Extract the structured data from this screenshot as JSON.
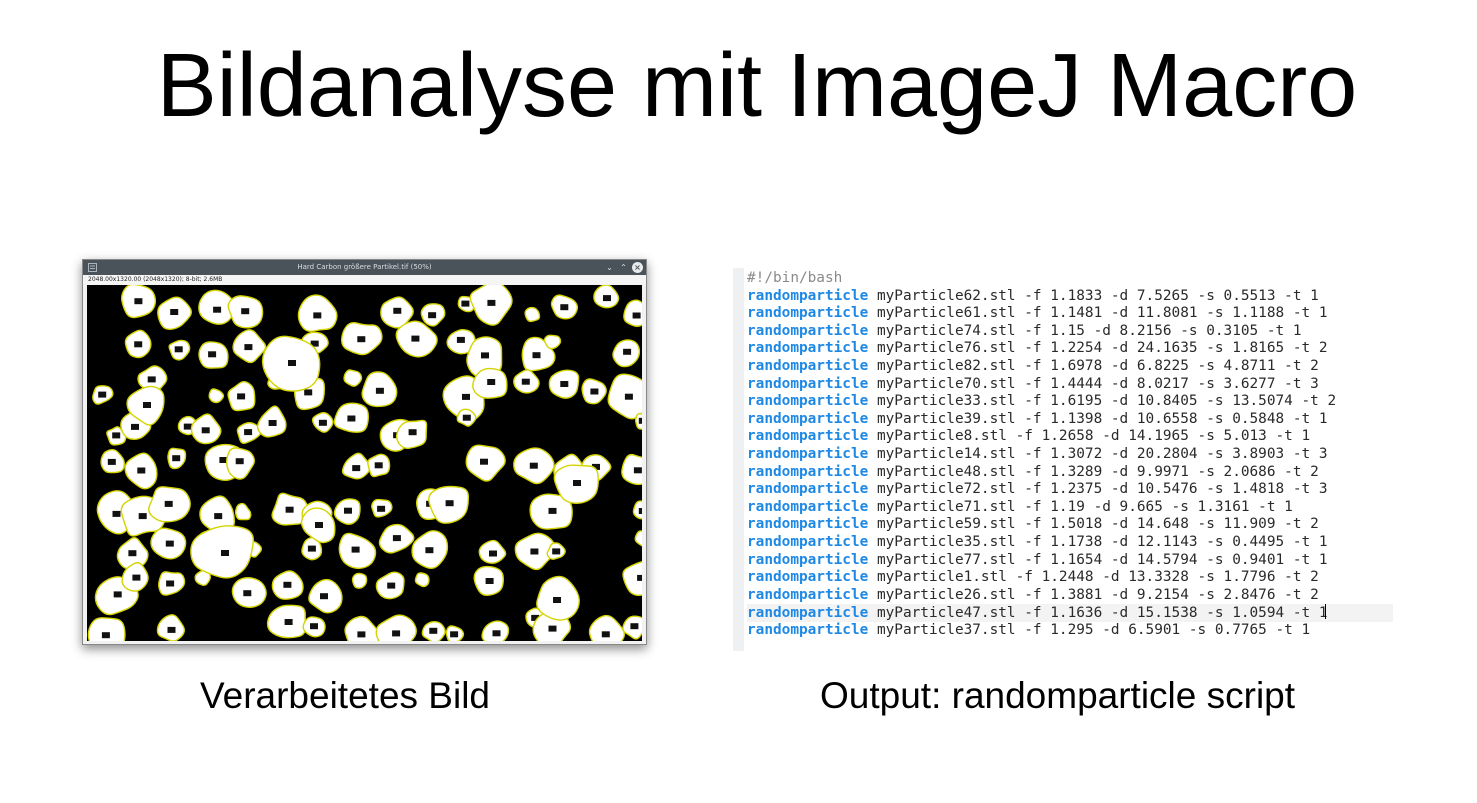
{
  "slide": {
    "title": "Bildanalyse mit ImageJ Macro",
    "left_caption": "Verarbeitetes Bild",
    "right_caption": "Output: randomparticle script"
  },
  "imagej_window": {
    "title": "Hard Carbon größere Partikel.tif (50%)",
    "info": "2048.00x1320.00  (2048x1320); 8-bit; 2.6MB",
    "icons": [
      "app-menu-icon",
      "minimize-icon",
      "maximize-icon",
      "close-icon"
    ]
  },
  "script": {
    "shebang": "#!/bin/bash",
    "command": "randomparticle",
    "lines": [
      "myParticle62.stl -f 1.1833 -d 7.5265 -s 0.5513 -t 1",
      "myParticle61.stl -f 1.1481 -d 11.8081 -s 1.1188 -t 1",
      "myParticle74.stl -f 1.15 -d 8.2156 -s 0.3105 -t 1",
      "myParticle76.stl -f 1.2254 -d 24.1635 -s 1.8165 -t 2",
      "myParticle82.stl -f 1.6978 -d 6.8225 -s 4.8711 -t 2",
      "myParticle70.stl -f 1.4444 -d 8.0217 -s 3.6277 -t 3",
      "myParticle33.stl -f 1.6195 -d 10.8405 -s 13.5074 -t 2",
      "myParticle39.stl -f 1.1398 -d 10.6558 -s 0.5848 -t 1",
      "myParticle8.stl -f 1.2658 -d 14.1965 -s 5.013 -t 1",
      "myParticle14.stl -f 1.3072 -d 20.2804 -s 3.8903 -t 3",
      "myParticle48.stl -f 1.3289 -d 9.9971 -s 2.0686 -t 2",
      "myParticle72.stl -f 1.2375 -d 10.5476 -s 1.4818 -t 3",
      "myParticle71.stl -f 1.19 -d 9.665 -s 1.3161 -t 1",
      "myParticle59.stl -f 1.5018 -d 14.648 -s 11.909 -t 2",
      "myParticle35.stl -f 1.1738 -d 12.1143 -s 0.4495 -t 1",
      "myParticle77.stl -f 1.1654 -d 14.5794 -s 0.9401 -t 1",
      "myParticle1.stl -f 1.2448 -d 13.3328 -s 1.7796 -t 2",
      "myParticle26.stl -f 1.3881 -d 9.2154 -s 2.8476 -t 2",
      "myParticle47.stl -f 1.1636 -d 15.1538 -s 1.0594 -t 1",
      "myParticle37.stl -f 1.295 -d 6.5901 -s 0.7765 -t 1"
    ],
    "current_line": 18
  },
  "colors": {
    "command": "#1e88e5",
    "titlebar": "#4a525a",
    "particle_outline": "#d4d400"
  }
}
